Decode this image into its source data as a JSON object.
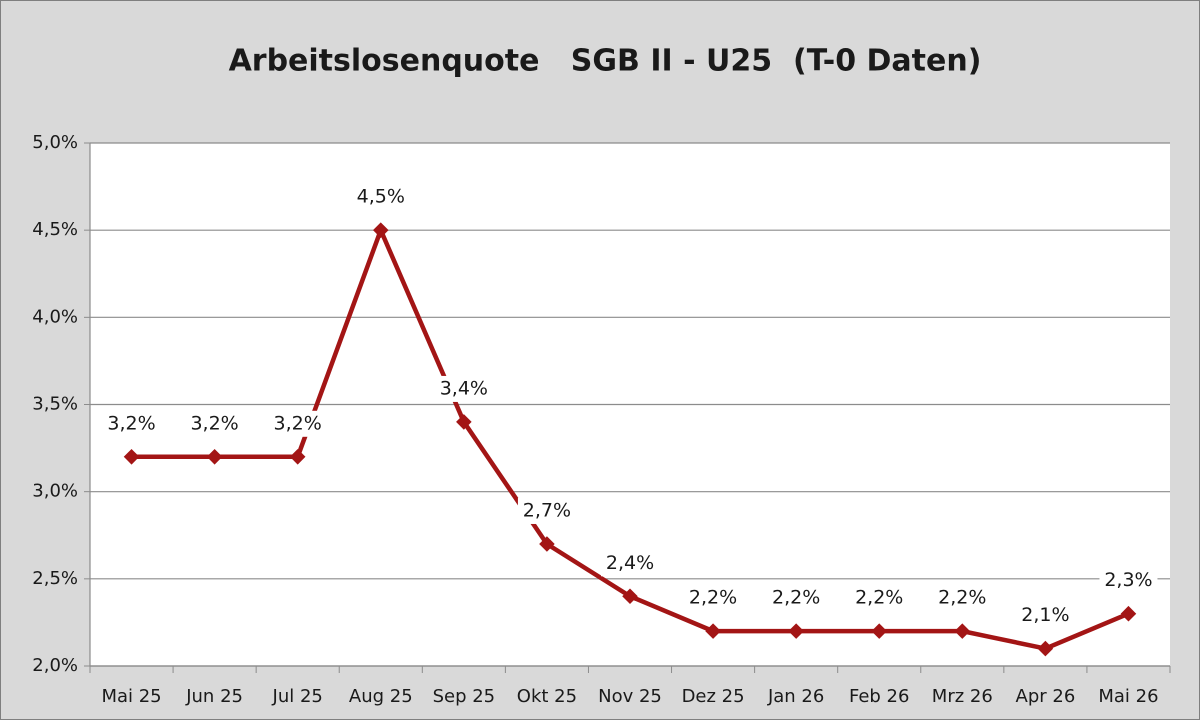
{
  "chart_data": {
    "type": "line",
    "title": "Arbeitslosenquote   SGB II - U25  (T-0 Daten)",
    "categories": [
      "Mai 25",
      "Jun 25",
      "Jul 25",
      "Aug 25",
      "Sep 25",
      "Okt 25",
      "Nov 25",
      "Dez 25",
      "Jan 26",
      "Feb 26",
      "Mrz 26",
      "Apr 26",
      "Mai 26"
    ],
    "values": [
      3.2,
      3.2,
      3.2,
      4.5,
      3.4,
      2.7,
      2.4,
      2.2,
      2.2,
      2.2,
      2.2,
      2.1,
      2.3
    ],
    "value_labels": [
      "3,2%",
      "3,2%",
      "3,2%",
      "4,5%",
      "3,4%",
      "2,7%",
      "2,4%",
      "2,2%",
      "2,2%",
      "2,2%",
      "2,2%",
      "2,1%",
      "2,3%"
    ],
    "color": "#a31515",
    "ylim": [
      2.0,
      5.0
    ],
    "yticks": [
      {
        "value": 2.0,
        "label": "2,0%"
      },
      {
        "value": 2.5,
        "label": "2,5%"
      },
      {
        "value": 3.0,
        "label": "3,0%"
      },
      {
        "value": 3.5,
        "label": "3,5%"
      },
      {
        "value": 4.0,
        "label": "4,0%"
      },
      {
        "value": 4.5,
        "label": "4,5%"
      },
      {
        "value": 5.0,
        "label": "5,0%"
      }
    ],
    "grid": true
  }
}
